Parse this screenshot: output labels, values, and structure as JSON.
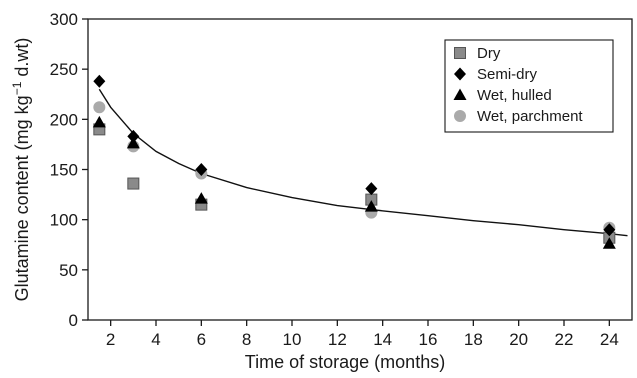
{
  "chart_data": {
    "type": "scatter",
    "xlabel": "Time of storage (months)",
    "ylabel_main": "Glutamine content (mg kg",
    "ylabel_sup": "−1",
    "ylabel_tail": " d.wt)",
    "xlim": [
      1,
      25
    ],
    "ylim": [
      0,
      300
    ],
    "xticks": [
      2,
      4,
      6,
      8,
      10,
      12,
      14,
      16,
      18,
      20,
      22,
      24
    ],
    "yticks": [
      0,
      50,
      100,
      150,
      200,
      250,
      300
    ],
    "grid": false,
    "legend_position": "top-right",
    "series": [
      {
        "name": "Dry",
        "marker": "square",
        "color": "#8a8a8a",
        "points": [
          [
            1.5,
            190
          ],
          [
            3,
            136
          ],
          [
            6,
            115
          ],
          [
            13.5,
            120
          ],
          [
            24,
            82
          ]
        ]
      },
      {
        "name": "Semi-dry",
        "marker": "diamond",
        "color": "#000000",
        "points": [
          [
            1.5,
            238
          ],
          [
            3,
            183
          ],
          [
            6,
            150
          ],
          [
            13.5,
            131
          ],
          [
            24,
            90
          ]
        ]
      },
      {
        "name": "Wet, hulled",
        "marker": "triangle",
        "color": "#000000",
        "points": [
          [
            1.5,
            197
          ],
          [
            3,
            176
          ],
          [
            6,
            121
          ],
          [
            13.5,
            113
          ],
          [
            24,
            76
          ]
        ]
      },
      {
        "name": "Wet, parchment",
        "marker": "circle",
        "color": "#aaaaaa",
        "points": [
          [
            1.5,
            212
          ],
          [
            3,
            173
          ],
          [
            6,
            146
          ],
          [
            13.5,
            107
          ],
          [
            24,
            92
          ]
        ]
      }
    ],
    "trend_line": {
      "type": "power-fit",
      "points": [
        [
          1.5,
          230
        ],
        [
          2,
          212
        ],
        [
          3,
          186
        ],
        [
          4,
          168
        ],
        [
          5,
          156
        ],
        [
          6,
          146
        ],
        [
          8,
          132
        ],
        [
          10,
          122
        ],
        [
          12,
          114
        ],
        [
          13.5,
          110
        ],
        [
          16,
          104
        ],
        [
          18,
          99
        ],
        [
          20,
          95
        ],
        [
          22,
          90
        ],
        [
          24,
          86
        ],
        [
          24.8,
          84
        ]
      ]
    }
  }
}
